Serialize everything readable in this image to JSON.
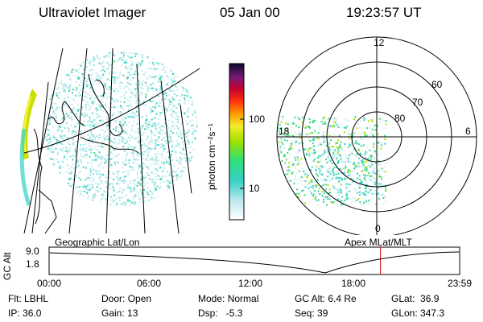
{
  "header": {
    "instrument": "Ultraviolet Imager",
    "date": "05 Jan 00",
    "time": "19:23:57 UT"
  },
  "colorbar": {
    "label": "photon cm⁻²s⁻¹",
    "ticks": [
      "100",
      "10"
    ],
    "scale": "log"
  },
  "polar": {
    "mlt_labels": {
      "top": "12",
      "left": "18",
      "right": "6",
      "bottom": "0"
    },
    "lat_labels": [
      "60",
      "70",
      "80"
    ]
  },
  "projections": {
    "left": "Geographic Lat/Lon",
    "right": "Apex MLat/MLT"
  },
  "altitude_plot": {
    "ylabel": "GC Alt",
    "yticks": [
      "9.0",
      "1.8"
    ],
    "xticks": [
      "00:00",
      "06:00",
      "12:00",
      "18:00",
      "23:59"
    ],
    "current_time_hours": 19.4,
    "marker_color": "#cc0000"
  },
  "info": {
    "flt_label": "Flt:",
    "flt_value": "LBHL",
    "ip_label": "IP:",
    "ip_value": "36.0",
    "door_label": "Door:",
    "door_value": "Open",
    "gain_label": "Gain:",
    "gain_value": "13",
    "mode_label": "Mode:",
    "mode_value": "Normal",
    "dsp_label": "Dsp:",
    "dsp_value": "-5.3",
    "gcalt_label": "GC Alt:",
    "gcalt_value": "6.4 Re",
    "seq_label": "Seq:",
    "seq_value": "39",
    "glat_label": "GLat:",
    "glat_value": "36.9",
    "glon_label": "GLon:",
    "glon_value": "347.3"
  }
}
